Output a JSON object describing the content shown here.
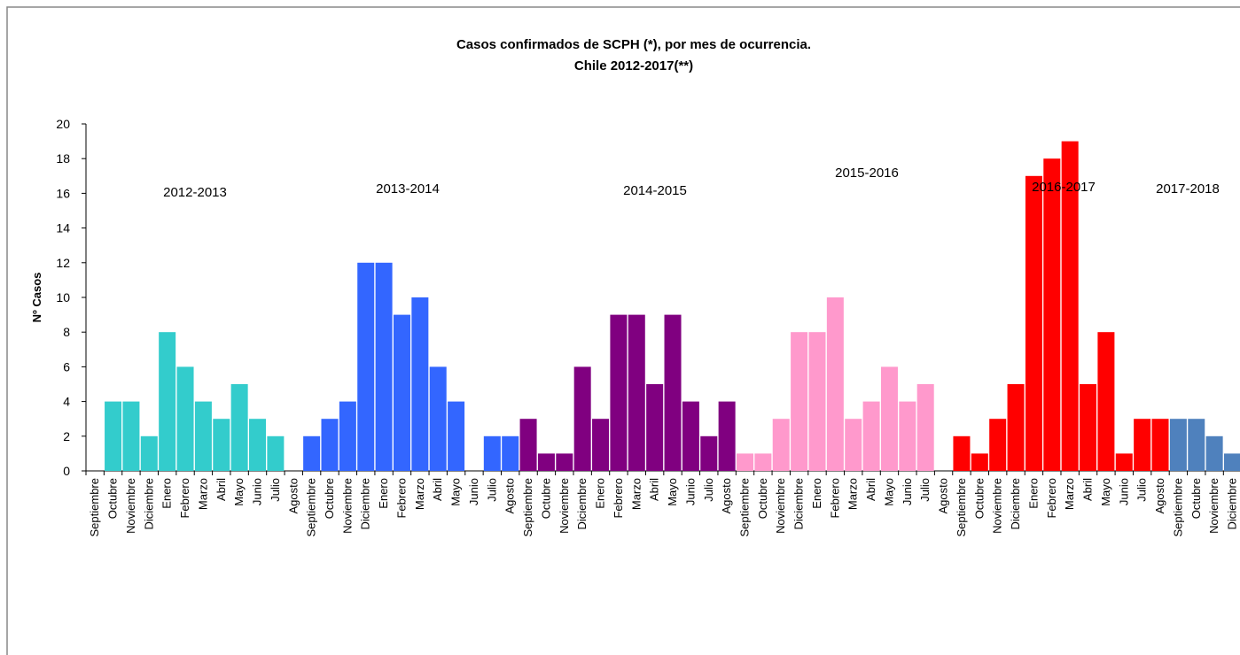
{
  "chart_data": {
    "type": "bar",
    "title": "Casos confirmados de SCPH (*), por mes de ocurrencia.",
    "subtitle": "Chile 2012-2017(**)",
    "y_label": "Nº Casos",
    "categories": [
      "Septiembre",
      "Octubre",
      "Noviembre",
      "Diciembre",
      "Enero",
      "Febrero",
      "Marzo",
      "Abril",
      "Mayo",
      "Junio",
      "Julio",
      "Agosto",
      "Septiembre",
      "Octubre",
      "Noviembre",
      "Diciembre",
      "Enero",
      "Febrero",
      "Marzo",
      "Abril",
      "Mayo",
      "Junio",
      "Julio",
      "Agosto",
      "Septiembre",
      "Octubre",
      "Noviembre",
      "Diciembre",
      "Enero",
      "Febrero",
      "Marzo",
      "Abril",
      "Mayo",
      "Junio",
      "Julio",
      "Agosto",
      "Septiembre",
      "Octubre",
      "Noviembre",
      "Diciembre",
      "Enero",
      "Febrero",
      "Marzo",
      "Abril",
      "Mayo",
      "Junio",
      "Julio",
      "Agosto",
      "Septiembre",
      "Octubre",
      "Noviembre",
      "Diciembre",
      "Enero",
      "Febrero",
      "Marzo",
      "Abril",
      "Mayo",
      "Junio",
      "Julio",
      "Agosto",
      "Septiembre",
      "Octubre",
      "Noviembre",
      "Diciembre"
    ],
    "series": [
      {
        "name": "2012-2013",
        "color": "#33cccc",
        "values": [
          0,
          4,
          4,
          2,
          8,
          6,
          4,
          3,
          5,
          3,
          2,
          0,
          null,
          null,
          null,
          null,
          null,
          null,
          null,
          null,
          null,
          null,
          null,
          null,
          null,
          null,
          null,
          null,
          null,
          null,
          null,
          null,
          null,
          null,
          null,
          null,
          null,
          null,
          null,
          null,
          null,
          null,
          null,
          null,
          null,
          null,
          null,
          null,
          null,
          null,
          null,
          null,
          null,
          null,
          null,
          null,
          null,
          null,
          null,
          null,
          null,
          null,
          null,
          null
        ]
      },
      {
        "name": "2013-2014",
        "color": "#3366ff",
        "values": [
          null,
          null,
          null,
          null,
          null,
          null,
          null,
          null,
          null,
          null,
          null,
          null,
          2,
          3,
          4,
          12,
          12,
          9,
          10,
          6,
          4,
          0,
          2,
          2,
          null,
          null,
          null,
          null,
          null,
          null,
          null,
          null,
          null,
          null,
          null,
          null,
          null,
          null,
          null,
          null,
          null,
          null,
          null,
          null,
          null,
          null,
          null,
          null,
          null,
          null,
          null,
          null,
          null,
          null,
          null,
          null,
          null,
          null,
          null,
          null,
          null,
          null,
          null,
          null
        ]
      },
      {
        "name": "2014-2015",
        "color": "#800080",
        "values": [
          null,
          null,
          null,
          null,
          null,
          null,
          null,
          null,
          null,
          null,
          null,
          null,
          null,
          null,
          null,
          null,
          null,
          null,
          null,
          null,
          null,
          null,
          null,
          null,
          3,
          1,
          1,
          6,
          3,
          9,
          9,
          5,
          9,
          4,
          2,
          4,
          null,
          null,
          null,
          null,
          null,
          null,
          null,
          null,
          null,
          null,
          null,
          null,
          null,
          null,
          null,
          null,
          null,
          null,
          null,
          null,
          null,
          null,
          null,
          null,
          null,
          null,
          null,
          null
        ]
      },
      {
        "name": "2015-2016",
        "color": "#ff99cc",
        "values": [
          null,
          null,
          null,
          null,
          null,
          null,
          null,
          null,
          null,
          null,
          null,
          null,
          null,
          null,
          null,
          null,
          null,
          null,
          null,
          null,
          null,
          null,
          null,
          null,
          null,
          null,
          null,
          null,
          null,
          null,
          null,
          null,
          null,
          null,
          null,
          null,
          1,
          1,
          3,
          8,
          8,
          10,
          3,
          4,
          6,
          4,
          5,
          0,
          null,
          null,
          null,
          null,
          null,
          null,
          null,
          null,
          null,
          null,
          null,
          null,
          null,
          null,
          null,
          null
        ]
      },
      {
        "name": "2016-2017",
        "color": "#ff0000",
        "values": [
          null,
          null,
          null,
          null,
          null,
          null,
          null,
          null,
          null,
          null,
          null,
          null,
          null,
          null,
          null,
          null,
          null,
          null,
          null,
          null,
          null,
          null,
          null,
          null,
          null,
          null,
          null,
          null,
          null,
          null,
          null,
          null,
          null,
          null,
          null,
          null,
          null,
          null,
          null,
          null,
          null,
          null,
          null,
          null,
          null,
          null,
          null,
          null,
          2,
          1,
          3,
          5,
          17,
          18,
          19,
          5,
          8,
          1,
          3,
          3,
          null,
          null,
          null,
          null
        ]
      },
      {
        "name": "2017-2018",
        "color": "#4f81bd",
        "values": [
          null,
          null,
          null,
          null,
          null,
          null,
          null,
          null,
          null,
          null,
          null,
          null,
          null,
          null,
          null,
          null,
          null,
          null,
          null,
          null,
          null,
          null,
          null,
          null,
          null,
          null,
          null,
          null,
          null,
          null,
          null,
          null,
          null,
          null,
          null,
          null,
          null,
          null,
          null,
          null,
          null,
          null,
          null,
          null,
          null,
          null,
          null,
          null,
          null,
          null,
          null,
          null,
          null,
          null,
          null,
          null,
          null,
          null,
          null,
          null,
          3,
          3,
          2,
          1
        ]
      }
    ],
    "ylim": [
      0,
      20
    ],
    "yticks": [
      0,
      2,
      4,
      6,
      8,
      10,
      12,
      14,
      16,
      18,
      20
    ]
  }
}
